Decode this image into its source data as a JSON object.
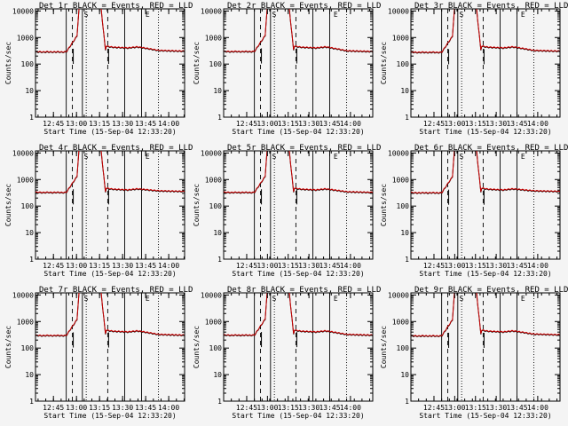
{
  "chart_data": {
    "type": "line",
    "xlabel": "Start Time (15-Sep-04 12:33:20)",
    "ylabel": "Counts/sec",
    "y_scale": "log",
    "ylim": [
      1,
      12000
    ],
    "y_ticks": [
      1,
      10,
      100,
      1000,
      10000
    ],
    "y_tick_labels": [
      "1",
      "10",
      "100",
      "1000",
      "10000"
    ],
    "grid": false,
    "line_colors": {
      "events": "#000000",
      "lld": "#cc0000"
    },
    "x_ticks_grid_a": [
      "12:45",
      "13:00",
      "13:15",
      "13:30",
      "13:45",
      "14:00"
    ],
    "x_ticks_grid_b": [
      "12:45",
      "13:00",
      "13:15",
      "13:30",
      "13:45",
      "14:00"
    ],
    "marker_labels": {
      "start": "S",
      "end": "E"
    },
    "panels": [
      {
        "title": "Det 1r  BLACK = Events, RED = LLD",
        "tick_set": "a",
        "base": 290,
        "tail": 330
      },
      {
        "title": "Det 2r  BLACK = Events, RED = LLD",
        "tick_set": "b",
        "base": 300,
        "tail": 320
      },
      {
        "title": "Det 3r  BLACK = Events, RED = LLD",
        "tick_set": "b",
        "base": 280,
        "tail": 330
      },
      {
        "title": "Det 4r  BLACK = Events, RED = LLD",
        "tick_set": "a",
        "base": 330,
        "tail": 380
      },
      {
        "title": "Det 5r  BLACK = Events, RED = LLD",
        "tick_set": "b",
        "base": 330,
        "tail": 350
      },
      {
        "title": "Det 6r  BLACK = Events, RED = LLD",
        "tick_set": "b",
        "base": 320,
        "tail": 380
      },
      {
        "title": "Det 7r  BLACK = Events, RED = LLD",
        "tick_set": "a",
        "base": 300,
        "tail": 330
      },
      {
        "title": "Det 8r  BLACK = Events, RED = LLD",
        "tick_set": "b",
        "base": 310,
        "tail": 330
      },
      {
        "title": "Det 9r  BLACK = Events, RED = LLD",
        "tick_set": "b",
        "base": 290,
        "tail": 340
      }
    ]
  }
}
